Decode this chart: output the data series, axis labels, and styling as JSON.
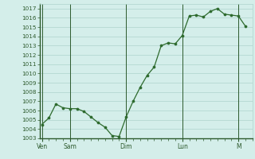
{
  "background_color": "#d4eeea",
  "line_color": "#2d6a2d",
  "marker_color": "#2d6a2d",
  "grid_color": "#aed4cc",
  "axis_color": "#2d5a2d",
  "tick_label_color": "#2d5a2d",
  "ylim": [
    1003,
    1017.5
  ],
  "yticks": [
    1003,
    1004,
    1005,
    1006,
    1007,
    1008,
    1009,
    1010,
    1011,
    1012,
    1013,
    1014,
    1015,
    1016,
    1017
  ],
  "day_labels": [
    "Ven",
    "Sam",
    "Dim",
    "Lun",
    "M"
  ],
  "day_positions": [
    0,
    12,
    36,
    60,
    84
  ],
  "x_values": [
    0,
    3,
    6,
    9,
    12,
    15,
    18,
    21,
    24,
    27,
    30,
    33,
    36,
    39,
    42,
    45,
    48,
    51,
    54,
    57,
    60,
    63,
    66,
    69,
    72,
    75,
    78,
    81,
    84,
    87
  ],
  "y_values": [
    1004.5,
    1005.2,
    1006.7,
    1006.3,
    1006.2,
    1006.2,
    1005.9,
    1005.3,
    1004.7,
    1004.2,
    1003.3,
    1003.2,
    1005.3,
    1007.0,
    1008.5,
    1009.8,
    1010.7,
    1013.0,
    1013.3,
    1013.2,
    1014.1,
    1016.2,
    1016.3,
    1016.1,
    1016.7,
    1017.0,
    1016.4,
    1016.3,
    1016.2,
    1015.1
  ],
  "xlim": [
    -1,
    90
  ]
}
